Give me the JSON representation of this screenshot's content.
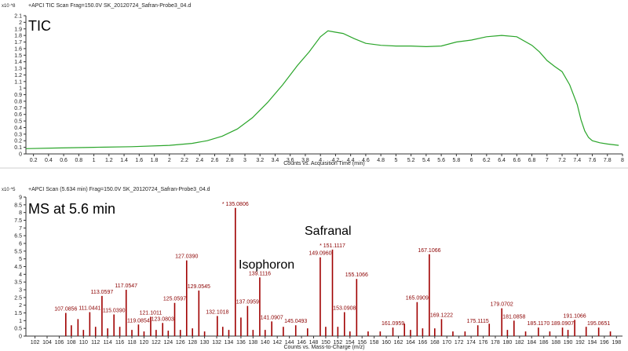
{
  "colors": {
    "tic_line": "#2aa52a",
    "peak": "#a00000",
    "peak_label": "#8b0000"
  },
  "chart_data": [
    {
      "type": "line",
      "header": "+APCI TIC Scan Frag=150.0V SK_20120724_Safran-Probe3_04.d",
      "inset_title": "TIC",
      "y_scale": "x10 ^8",
      "xlabel": "Counts vs. Acquisition Time (min)",
      "ylabel": "",
      "xlim": [
        0.1,
        8.0
      ],
      "ylim": [
        0,
        2.1
      ],
      "x_ticks": [
        "0.2",
        "0.4",
        "0.6",
        "0.8",
        "1",
        "1.2",
        "1.4",
        "1.6",
        "1.8",
        "2",
        "2.2",
        "2.4",
        "2.6",
        "2.8",
        "3",
        "3.2",
        "3.4",
        "3.6",
        "3.8",
        "4",
        "4.2",
        "4.4",
        "4.6",
        "4.8",
        "5",
        "5.2",
        "5.4",
        "5.6",
        "5.8",
        "6",
        "6.2",
        "6.4",
        "6.6",
        "6.8",
        "7",
        "7.2",
        "7.4",
        "7.6",
        "7.8",
        "8"
      ],
      "y_ticks": [
        "0",
        "0.1",
        "0.2",
        "0.3",
        "0.4",
        "0.5",
        "0.6",
        "0.7",
        "0.8",
        "0.9",
        "1",
        "1.1",
        "1.2",
        "1.3",
        "1.4",
        "1.5",
        "1.6",
        "1.7",
        "1.8",
        "1.9",
        "2",
        "2.1"
      ],
      "series": [
        {
          "x": [
            0.1,
            0.5,
            1.0,
            1.5,
            2.0,
            2.3,
            2.5,
            2.7,
            2.9,
            3.1,
            3.3,
            3.5,
            3.7,
            3.85,
            4.0,
            4.1,
            4.2,
            4.3,
            4.45,
            4.6,
            4.8,
            5.0,
            5.2,
            5.4,
            5.6,
            5.8,
            6.0,
            6.2,
            6.4,
            6.6,
            6.8,
            6.9,
            7.0,
            7.1,
            7.2,
            7.3,
            7.4,
            7.45,
            7.5,
            7.55,
            7.6,
            7.7,
            7.8,
            7.95
          ],
          "y": [
            0.08,
            0.09,
            0.1,
            0.11,
            0.13,
            0.16,
            0.2,
            0.27,
            0.38,
            0.55,
            0.78,
            1.05,
            1.35,
            1.55,
            1.78,
            1.87,
            1.85,
            1.83,
            1.75,
            1.68,
            1.65,
            1.64,
            1.64,
            1.63,
            1.64,
            1.7,
            1.73,
            1.78,
            1.8,
            1.78,
            1.65,
            1.55,
            1.42,
            1.33,
            1.25,
            1.05,
            0.75,
            0.52,
            0.35,
            0.25,
            0.2,
            0.17,
            0.15,
            0.13
          ]
        }
      ]
    },
    {
      "type": "bar",
      "header": "+APCI Scan (5.634 min) Frag=150.0V SK_20120724_Safran-Probe3_04.d",
      "inset_title": "MS at 5.6 min",
      "y_scale": "x10 ^5",
      "xlabel": "Counts vs. Mass-to-Charge (m/z)",
      "ylabel": "",
      "xlim": [
        100.5,
        199.0
      ],
      "ylim": [
        0,
        9.0
      ],
      "x_ticks": [
        "102",
        "104",
        "106",
        "108",
        "110",
        "112",
        "114",
        "116",
        "118",
        "120",
        "122",
        "124",
        "126",
        "128",
        "130",
        "132",
        "134",
        "136",
        "138",
        "140",
        "142",
        "144",
        "146",
        "148",
        "150",
        "152",
        "154",
        "156",
        "158",
        "160",
        "162",
        "164",
        "166",
        "168",
        "170",
        "172",
        "174",
        "176",
        "178",
        "180",
        "182",
        "184",
        "186",
        "188",
        "190",
        "192",
        "194",
        "196",
        "198"
      ],
      "y_ticks": [
        "0",
        "0.5",
        "1",
        "1.5",
        "2",
        "2.5",
        "3",
        "3.5",
        "4",
        "4.5",
        "5",
        "5.5",
        "6",
        "6.5",
        "7",
        "7.5",
        "8",
        "8.5",
        "9"
      ],
      "annotations": [
        {
          "text": "Isophoron",
          "mz": 139.1116
        },
        {
          "text": "Safranal",
          "mz": 151.1117
        }
      ],
      "peaks": [
        {
          "mz": 107.0856,
          "value": 1.5,
          "label": "107.0856"
        },
        {
          "mz": 108.0,
          "value": 0.7,
          "label": ""
        },
        {
          "mz": 109.1,
          "value": 1.1,
          "label": ""
        },
        {
          "mz": 110.0,
          "value": 0.4,
          "label": ""
        },
        {
          "mz": 111.0441,
          "value": 1.55,
          "label": "111.0441"
        },
        {
          "mz": 112.0,
          "value": 0.6,
          "label": ""
        },
        {
          "mz": 113.0597,
          "value": 2.6,
          "label": "113.0597"
        },
        {
          "mz": 114.0,
          "value": 0.5,
          "label": ""
        },
        {
          "mz": 115.039,
          "value": 1.4,
          "label": "115.0390"
        },
        {
          "mz": 116.0,
          "value": 0.6,
          "label": ""
        },
        {
          "mz": 117.0547,
          "value": 3.0,
          "label": "117.0547"
        },
        {
          "mz": 118.0,
          "value": 0.4,
          "label": ""
        },
        {
          "mz": 119.0854,
          "value": 0.75,
          "label": "119.0854"
        },
        {
          "mz": 120.0,
          "value": 0.3,
          "label": ""
        },
        {
          "mz": 121.1011,
          "value": 1.25,
          "label": "121.1011"
        },
        {
          "mz": 122.0,
          "value": 0.4,
          "label": ""
        },
        {
          "mz": 123.0803,
          "value": 0.85,
          "label": "123.0803"
        },
        {
          "mz": 124.0,
          "value": 0.35,
          "label": ""
        },
        {
          "mz": 125.0597,
          "value": 2.15,
          "label": "125.0597"
        },
        {
          "mz": 126.0,
          "value": 0.4,
          "label": ""
        },
        {
          "mz": 127.039,
          "value": 4.9,
          "label": "127.0390"
        },
        {
          "mz": 128.0,
          "value": 0.5,
          "label": ""
        },
        {
          "mz": 129.0545,
          "value": 2.95,
          "label": "129.0545"
        },
        {
          "mz": 130.0,
          "value": 0.3,
          "label": ""
        },
        {
          "mz": 132.1018,
          "value": 1.3,
          "label": "132.1018"
        },
        {
          "mz": 133.0,
          "value": 0.6,
          "label": ""
        },
        {
          "mz": 134.0,
          "value": 0.4,
          "label": ""
        },
        {
          "mz": 135.0806,
          "value": 8.3,
          "label": "* 135.0806"
        },
        {
          "mz": 136.0,
          "value": 1.2,
          "label": ""
        },
        {
          "mz": 137.0959,
          "value": 1.95,
          "label": "137.0959"
        },
        {
          "mz": 138.0,
          "value": 0.4,
          "label": ""
        },
        {
          "mz": 139.1116,
          "value": 3.8,
          "label": "139.1116"
        },
        {
          "mz": 140.0,
          "value": 0.4,
          "label": ""
        },
        {
          "mz": 141.0907,
          "value": 0.95,
          "label": "141.0907"
        },
        {
          "mz": 143.0,
          "value": 0.6,
          "label": ""
        },
        {
          "mz": 145.0493,
          "value": 0.7,
          "label": "145.0493"
        },
        {
          "mz": 147.0,
          "value": 0.5,
          "label": ""
        },
        {
          "mz": 149.096,
          "value": 5.1,
          "label": "149.0960"
        },
        {
          "mz": 150.0,
          "value": 0.6,
          "label": ""
        },
        {
          "mz": 151.1117,
          "value": 5.6,
          "label": "* 151.1117"
        },
        {
          "mz": 152.0,
          "value": 0.6,
          "label": ""
        },
        {
          "mz": 153.0908,
          "value": 1.55,
          "label": "153.0908"
        },
        {
          "mz": 154.0,
          "value": 0.3,
          "label": ""
        },
        {
          "mz": 155.1066,
          "value": 3.7,
          "label": "155.1066"
        },
        {
          "mz": 157.0,
          "value": 0.3,
          "label": ""
        },
        {
          "mz": 159.0,
          "value": 0.3,
          "label": ""
        },
        {
          "mz": 161.0959,
          "value": 0.55,
          "label": "161.0959"
        },
        {
          "mz": 163.0,
          "value": 0.8,
          "label": ""
        },
        {
          "mz": 164.0,
          "value": 0.4,
          "label": ""
        },
        {
          "mz": 165.0909,
          "value": 2.2,
          "label": "165.0909"
        },
        {
          "mz": 166.0,
          "value": 0.5,
          "label": ""
        },
        {
          "mz": 167.1066,
          "value": 5.3,
          "label": "167.1066"
        },
        {
          "mz": 168.0,
          "value": 0.5,
          "label": ""
        },
        {
          "mz": 169.1222,
          "value": 1.1,
          "label": "169.1222"
        },
        {
          "mz": 171.0,
          "value": 0.3,
          "label": ""
        },
        {
          "mz": 173.0,
          "value": 0.3,
          "label": ""
        },
        {
          "mz": 175.1115,
          "value": 0.7,
          "label": "175.1115"
        },
        {
          "mz": 177.0,
          "value": 0.8,
          "label": ""
        },
        {
          "mz": 179.0702,
          "value": 1.8,
          "label": "179.0702"
        },
        {
          "mz": 180.0,
          "value": 0.4,
          "label": ""
        },
        {
          "mz": 181.0858,
          "value": 1.0,
          "label": "181.0858"
        },
        {
          "mz": 183.0,
          "value": 0.3,
          "label": ""
        },
        {
          "mz": 185.117,
          "value": 0.55,
          "label": "185.1170"
        },
        {
          "mz": 187.0,
          "value": 0.3,
          "label": ""
        },
        {
          "mz": 189.0907,
          "value": 0.55,
          "label": "189.0907"
        },
        {
          "mz": 190.0,
          "value": 0.4,
          "label": ""
        },
        {
          "mz": 191.1066,
          "value": 1.05,
          "label": "191.1066"
        },
        {
          "mz": 193.0,
          "value": 0.6,
          "label": ""
        },
        {
          "mz": 195.0651,
          "value": 0.55,
          "label": "195.0651"
        },
        {
          "mz": 197.0,
          "value": 0.3,
          "label": ""
        }
      ]
    }
  ]
}
